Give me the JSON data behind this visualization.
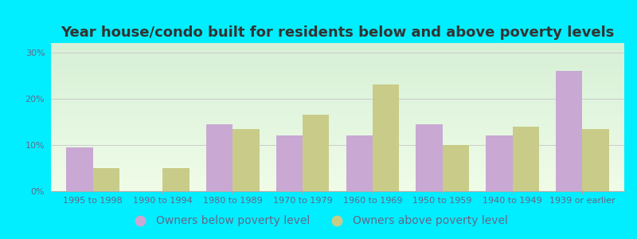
{
  "title": "Year house/condo built for residents below and above poverty levels",
  "categories": [
    "1995 to 1998",
    "1990 to 1994",
    "1980 to 1989",
    "1970 to 1979",
    "1960 to 1969",
    "1950 to 1959",
    "1940 to 1949",
    "1939 or earlier"
  ],
  "below_poverty": [
    9.5,
    0.0,
    14.5,
    12.0,
    12.0,
    14.5,
    12.0,
    26.0
  ],
  "above_poverty": [
    5.0,
    5.0,
    13.5,
    16.5,
    23.0,
    10.0,
    14.0,
    13.5
  ],
  "below_color": "#c9a8d4",
  "above_color": "#c8cc88",
  "outer_bg": "#00eeff",
  "plot_bg_top": "#d6f0d6",
  "plot_bg_bottom": "#f0fce8",
  "ylim": [
    0,
    32
  ],
  "yticks": [
    0,
    10,
    20,
    30
  ],
  "ytick_labels": [
    "0%",
    "10%",
    "20%",
    "30%"
  ],
  "title_fontsize": 13,
  "tick_fontsize": 8,
  "legend_fontsize": 10,
  "bar_width": 0.38,
  "legend_below_label": "Owners below poverty level",
  "legend_above_label": "Owners above poverty level",
  "text_color": "#666688"
}
